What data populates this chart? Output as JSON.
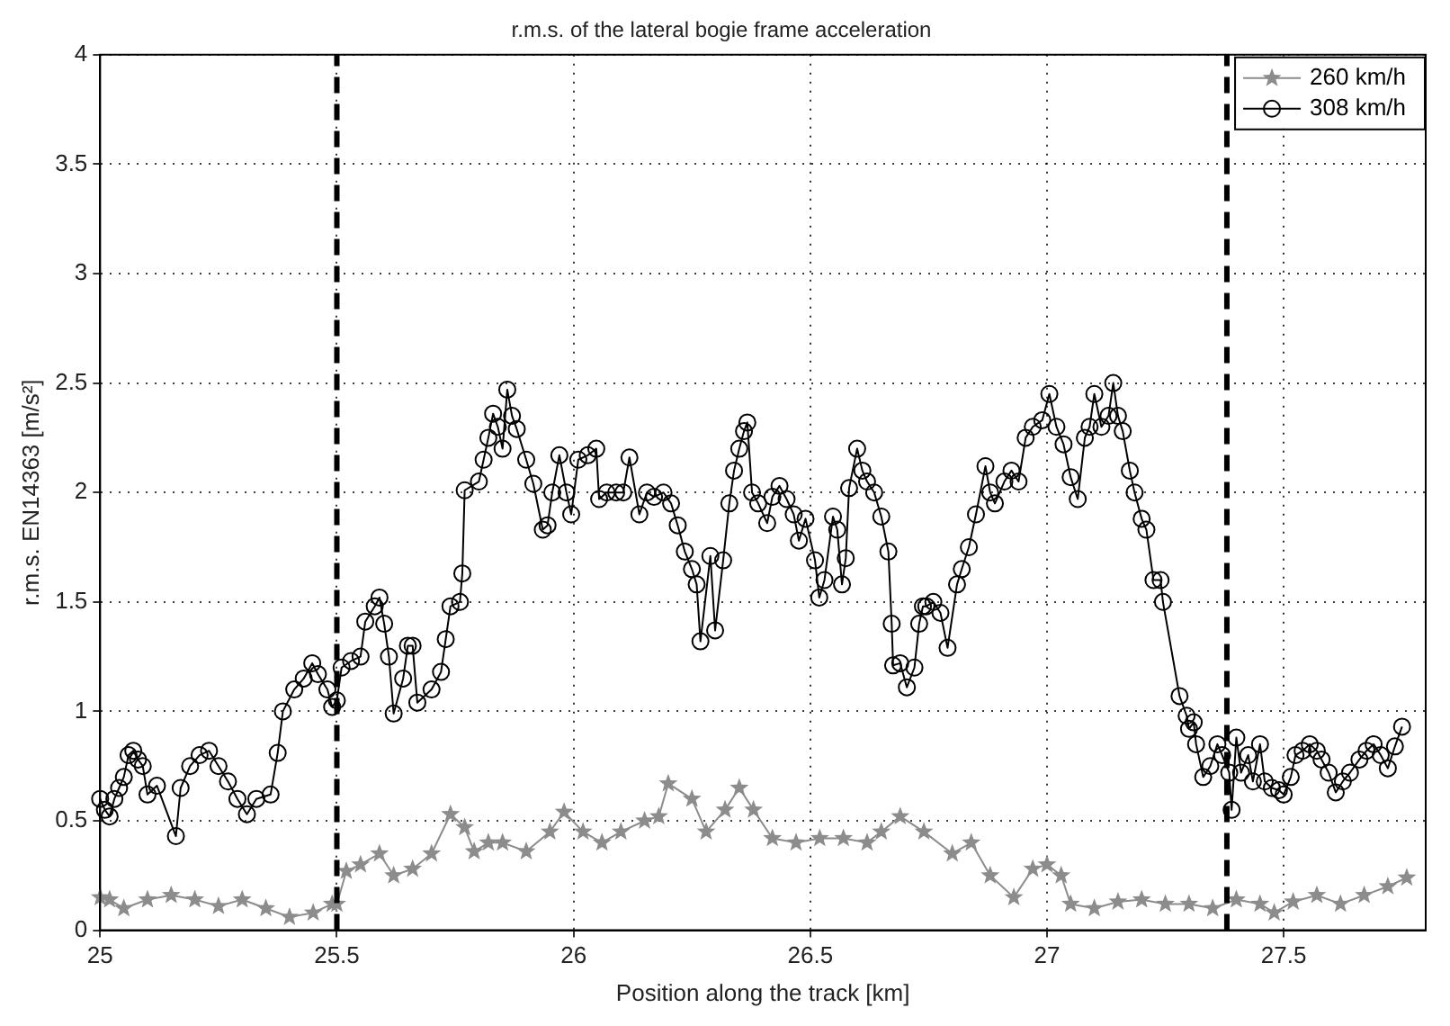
{
  "chart_data": {
    "type": "line",
    "title": "r.m.s. of the lateral bogie frame acceleration",
    "xlabel": "Position along the track [km]",
    "ylabel": "r.m.s. EN14363 [m/s²]",
    "xlim": [
      25,
      27.8
    ],
    "xticks": [
      25,
      25.5,
      26,
      26.5,
      27,
      27.5
    ],
    "ylim": [
      0,
      4
    ],
    "yticks": [
      0,
      0.5,
      1,
      1.5,
      2,
      2.5,
      3,
      3.5,
      4
    ],
    "grid": true,
    "legend": "top right",
    "ref_lines": [
      {
        "axis": "x",
        "value": 25.5,
        "color": "#000000",
        "line_style": "dashed"
      },
      {
        "axis": "x",
        "value": 27.38,
        "color": "#000000",
        "line_style": "dashed"
      }
    ],
    "series": [
      {
        "name": "260 km/h",
        "color": "#8c8c8c",
        "marker": "star",
        "x": [
          25.0,
          25.02,
          25.05,
          25.1,
          25.15,
          25.2,
          25.25,
          25.3,
          25.35,
          25.4,
          25.45,
          25.49,
          25.5,
          25.52,
          25.55,
          25.59,
          25.62,
          25.66,
          25.7,
          25.74,
          25.77,
          25.79,
          25.82,
          25.85,
          25.9,
          25.95,
          25.98,
          26.02,
          26.06,
          26.1,
          26.15,
          26.18,
          26.2,
          26.25,
          26.28,
          26.32,
          26.35,
          26.38,
          26.42,
          26.47,
          26.52,
          26.57,
          26.62,
          26.65,
          26.69,
          26.74,
          26.8,
          26.84,
          26.88,
          26.93,
          26.97,
          27.0,
          27.03,
          27.05,
          27.1,
          27.15,
          27.2,
          27.25,
          27.3,
          27.35,
          27.4,
          27.45,
          27.48,
          27.52,
          27.57,
          27.62,
          27.67,
          27.72,
          27.76
        ],
        "values": [
          0.15,
          0.14,
          0.1,
          0.14,
          0.16,
          0.14,
          0.11,
          0.14,
          0.1,
          0.06,
          0.08,
          0.12,
          0.12,
          0.27,
          0.3,
          0.35,
          0.25,
          0.28,
          0.35,
          0.53,
          0.47,
          0.36,
          0.4,
          0.4,
          0.36,
          0.45,
          0.54,
          0.45,
          0.4,
          0.45,
          0.5,
          0.52,
          0.67,
          0.6,
          0.45,
          0.55,
          0.65,
          0.55,
          0.42,
          0.4,
          0.42,
          0.42,
          0.4,
          0.45,
          0.52,
          0.45,
          0.35,
          0.4,
          0.25,
          0.15,
          0.28,
          0.3,
          0.25,
          0.12,
          0.1,
          0.13,
          0.14,
          0.12,
          0.12,
          0.1,
          0.14,
          0.12,
          0.08,
          0.13,
          0.16,
          0.12,
          0.16,
          0.2,
          0.24
        ]
      },
      {
        "name": "308 km/h",
        "color": "#000000",
        "marker": "circle",
        "x": [
          25.0,
          25.01,
          25.02,
          25.03,
          25.04,
          25.05,
          25.06,
          25.07,
          25.08,
          25.09,
          25.1,
          25.12,
          25.16,
          25.17,
          25.19,
          25.21,
          25.23,
          25.25,
          25.27,
          25.29,
          25.31,
          25.33,
          25.36,
          25.375,
          25.386,
          25.41,
          25.43,
          25.448,
          25.46,
          25.48,
          25.49,
          25.5,
          25.51,
          25.53,
          25.55,
          25.56,
          25.58,
          25.59,
          25.6,
          25.61,
          25.62,
          25.64,
          25.65,
          25.66,
          25.67,
          25.7,
          25.72,
          25.73,
          25.74,
          25.76,
          25.765,
          25.77,
          25.8,
          25.81,
          25.82,
          25.83,
          25.84,
          25.85,
          25.86,
          25.87,
          25.88,
          25.9,
          25.915,
          25.935,
          25.945,
          25.955,
          25.97,
          25.985,
          25.995,
          26.01,
          26.03,
          26.048,
          26.054,
          26.07,
          26.09,
          26.105,
          26.118,
          26.139,
          26.155,
          26.17,
          26.19,
          26.206,
          26.22,
          26.235,
          26.25,
          26.26,
          26.268,
          26.289,
          26.299,
          26.316,
          26.329,
          26.339,
          26.35,
          26.36,
          26.367,
          26.377,
          26.39,
          26.409,
          26.42,
          26.435,
          26.45,
          26.465,
          26.476,
          26.49,
          26.51,
          26.519,
          26.53,
          26.548,
          26.557,
          26.567,
          26.575,
          26.582,
          26.599,
          26.61,
          26.62,
          26.635,
          26.65,
          26.665,
          26.672,
          26.675,
          26.69,
          26.704,
          26.72,
          26.73,
          26.738,
          26.745,
          26.76,
          26.775,
          26.79,
          26.81,
          26.82,
          26.835,
          26.85,
          26.87,
          26.88,
          26.89,
          26.91,
          26.925,
          26.94,
          26.955,
          26.97,
          26.99,
          27.005,
          27.02,
          27.035,
          27.05,
          27.065,
          27.08,
          27.09,
          27.1,
          27.115,
          27.13,
          27.14,
          27.15,
          27.16,
          27.175,
          27.185,
          27.2,
          27.21,
          27.225,
          27.24,
          27.245,
          27.28,
          27.295,
          27.3,
          27.31,
          27.315,
          27.33,
          27.345,
          27.36,
          27.37,
          27.385,
          27.39,
          27.4,
          27.41,
          27.425,
          27.435,
          27.45,
          27.46,
          27.475,
          27.49,
          27.5,
          27.515,
          27.525,
          27.54,
          27.555,
          27.57,
          27.58,
          27.595,
          27.61,
          27.625,
          27.64,
          27.66,
          27.675,
          27.69,
          27.705,
          27.72,
          27.735,
          27.75
        ],
        "values": [
          0.6,
          0.55,
          0.52,
          0.6,
          0.65,
          0.7,
          0.8,
          0.82,
          0.78,
          0.75,
          0.62,
          0.66,
          0.43,
          0.65,
          0.75,
          0.8,
          0.82,
          0.75,
          0.68,
          0.6,
          0.53,
          0.6,
          0.62,
          0.81,
          1.0,
          1.1,
          1.15,
          1.22,
          1.17,
          1.1,
          1.02,
          1.05,
          1.2,
          1.23,
          1.25,
          1.41,
          1.48,
          1.52,
          1.4,
          1.25,
          0.99,
          1.15,
          1.3,
          1.3,
          1.04,
          1.1,
          1.18,
          1.33,
          1.48,
          1.5,
          1.63,
          2.01,
          2.05,
          2.15,
          2.25,
          2.36,
          2.3,
          2.2,
          2.47,
          2.35,
          2.29,
          2.15,
          2.04,
          1.83,
          1.85,
          2.0,
          2.17,
          2.0,
          1.9,
          2.15,
          2.17,
          2.2,
          1.97,
          2.0,
          2.0,
          2.0,
          2.16,
          1.9,
          2.0,
          1.98,
          2.0,
          1.95,
          1.85,
          1.73,
          1.65,
          1.58,
          1.32,
          1.71,
          1.37,
          1.69,
          1.95,
          2.1,
          2.2,
          2.28,
          2.32,
          2.0,
          1.95,
          1.86,
          1.98,
          2.03,
          1.97,
          1.9,
          1.78,
          1.88,
          1.69,
          1.52,
          1.6,
          1.89,
          1.83,
          1.58,
          1.7,
          2.02,
          2.2,
          2.1,
          2.05,
          2.0,
          1.89,
          1.73,
          1.4,
          1.21,
          1.22,
          1.11,
          1.2,
          1.4,
          1.48,
          1.48,
          1.5,
          1.45,
          1.29,
          1.58,
          1.65,
          1.75,
          1.9,
          2.12,
          2.0,
          1.95,
          2.05,
          2.1,
          2.05,
          2.25,
          2.3,
          2.33,
          2.45,
          2.3,
          2.22,
          2.07,
          1.97,
          2.25,
          2.3,
          2.45,
          2.3,
          2.35,
          2.5,
          2.35,
          2.28,
          2.1,
          2.0,
          1.88,
          1.83,
          1.6,
          1.6,
          1.5,
          1.07,
          0.98,
          0.92,
          0.95,
          0.85,
          0.7,
          0.75,
          0.85,
          0.8,
          0.72,
          0.55,
          0.88,
          0.72,
          0.8,
          0.68,
          0.85,
          0.68,
          0.65,
          0.64,
          0.62,
          0.7,
          0.8,
          0.82,
          0.85,
          0.82,
          0.78,
          0.72,
          0.63,
          0.68,
          0.72,
          0.78,
          0.82,
          0.85,
          0.8,
          0.74,
          0.84,
          0.93
        ]
      }
    ]
  }
}
